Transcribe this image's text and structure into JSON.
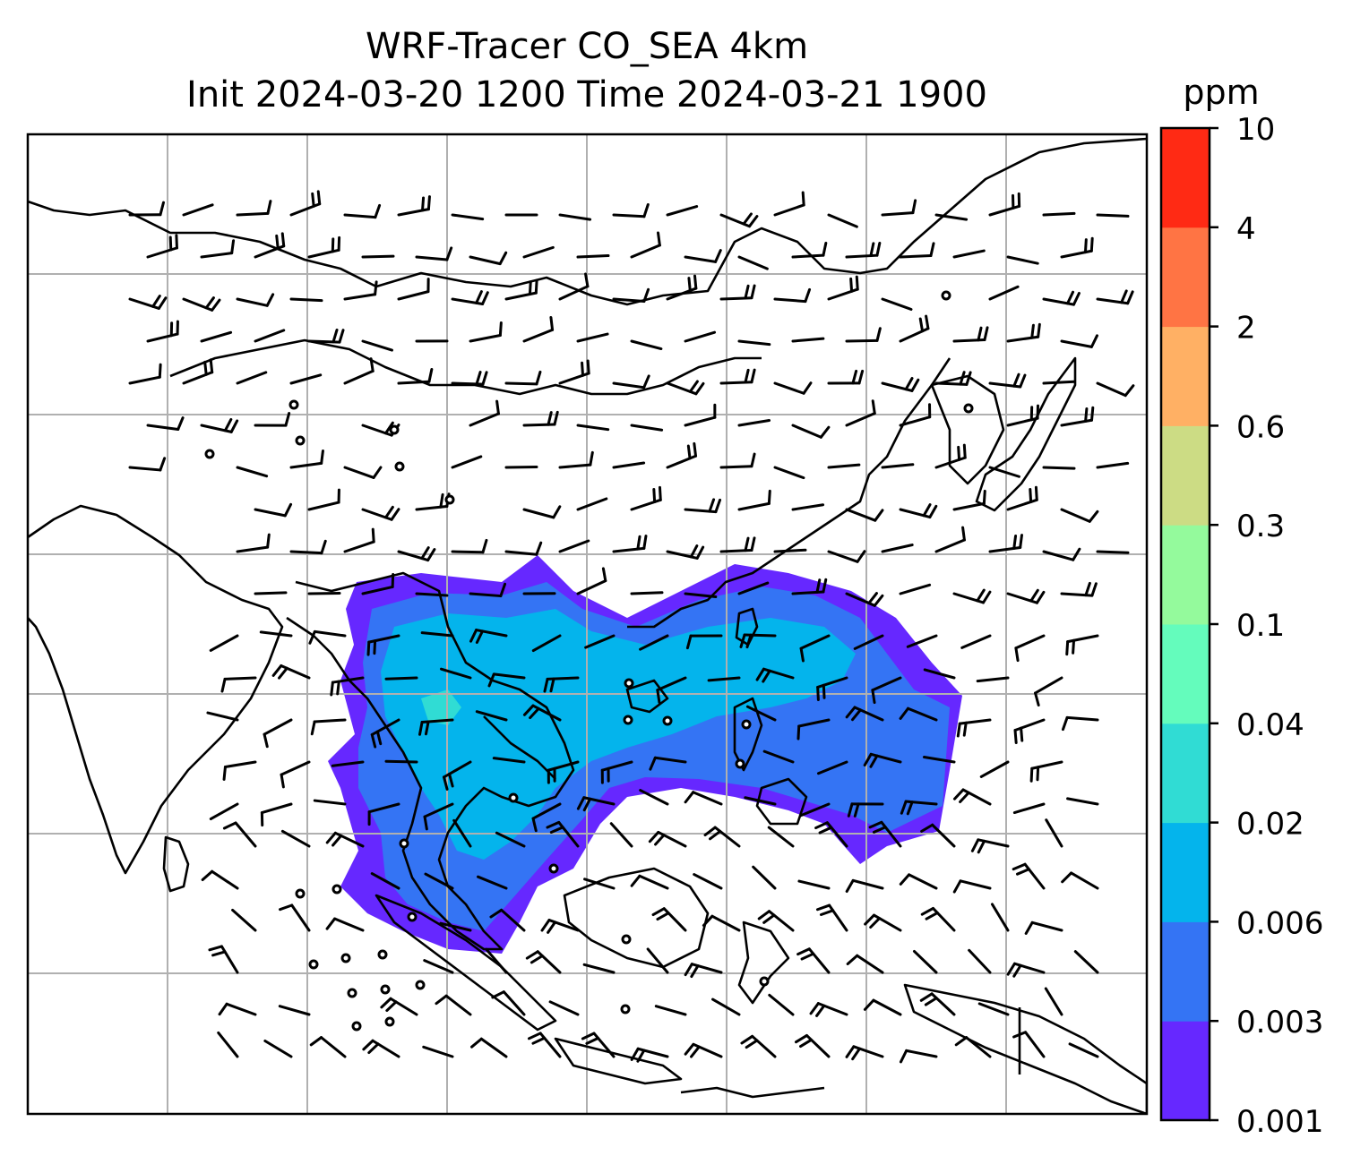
{
  "title": {
    "line1": "WRF-Tracer CO_SEA 4km",
    "line2": "Init 2024-03-20 1200 Time 2024-03-21 1900"
  },
  "colorbar": {
    "unit": "ppm",
    "levels": [
      "0.001",
      "0.003",
      "0.006",
      "0.02",
      "0.04",
      "0.1",
      "0.3",
      "0.6",
      "2",
      "4",
      "10"
    ],
    "colors": [
      "#6628ff",
      "#3474f4",
      "#04b4ec",
      "#30dcd4",
      "#64fcbc",
      "#94fa9c",
      "#ccdc84",
      "#ffb064",
      "#ff7444",
      "#ff2a14"
    ]
  },
  "map": {
    "grid": "on",
    "gridlines": {
      "columns": 7,
      "rows": 6
    },
    "tracer_field_colors": {
      "lowest": "#6628ff",
      "low": "#3474f4",
      "mid": "#04b4ec",
      "peak": "#30dcd4"
    },
    "wind_barbs": "black barbs over domain; circles denote calm"
  }
}
